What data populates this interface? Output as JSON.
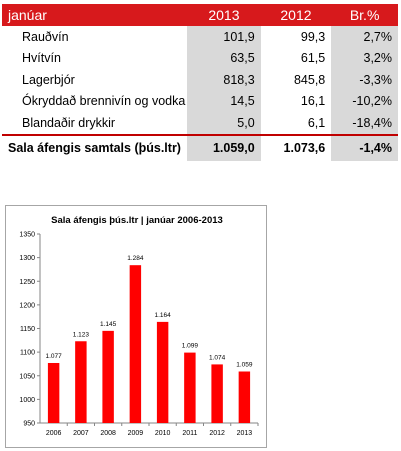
{
  "table": {
    "header": {
      "label": "janúar",
      "col_2013": "2013",
      "col_2012": "2012",
      "col_change": "Br.%"
    },
    "rows": [
      {
        "label": "Rauðvín",
        "v2013": "101,9",
        "v2012": "99,3",
        "change": "2,7%"
      },
      {
        "label": "Hvítvín",
        "v2013": "63,5",
        "v2012": "61,5",
        "change": "3,2%"
      },
      {
        "label": "Lagerbjór",
        "v2013": "818,3",
        "v2012": "845,8",
        "change": "-3,3%"
      },
      {
        "label": "Ókryddað brennivín og vodka",
        "v2013": "14,5",
        "v2012": "16,1",
        "change": "-10,2%"
      },
      {
        "label": "Blandaðir drykkir",
        "v2013": "5,0",
        "v2012": "6,1",
        "change": "-18,4%"
      }
    ],
    "total": {
      "label": "Sala áfengis samtals (þús.ltr)",
      "v2013": "1.059,0",
      "v2012": "1.073,6",
      "change": "-1,4%"
    }
  },
  "colors": {
    "accent_red": "#d7191c",
    "bar_red": "#ff0000",
    "shade_gray": "#d9d9d9"
  },
  "chart_data": {
    "type": "bar",
    "title": "Sala áfengis  þús.ltr | janúar 2006-2013",
    "categories": [
      "2006",
      "2007",
      "2008",
      "2009",
      "2010",
      "2011",
      "2012",
      "2013"
    ],
    "values": [
      1077,
      1123,
      1145,
      1284,
      1164,
      1099,
      1074,
      1059
    ],
    "data_labels": [
      "1.077",
      "1.123",
      "1.145",
      "1.284",
      "1.164",
      "1.099",
      "1.074",
      "1.059"
    ],
    "ylim": [
      950,
      1350
    ],
    "y_ticks": [
      "950",
      "1000",
      "1050",
      "1100",
      "1150",
      "1200",
      "1250",
      "1300",
      "1350"
    ],
    "grid": false,
    "legend": "none"
  }
}
